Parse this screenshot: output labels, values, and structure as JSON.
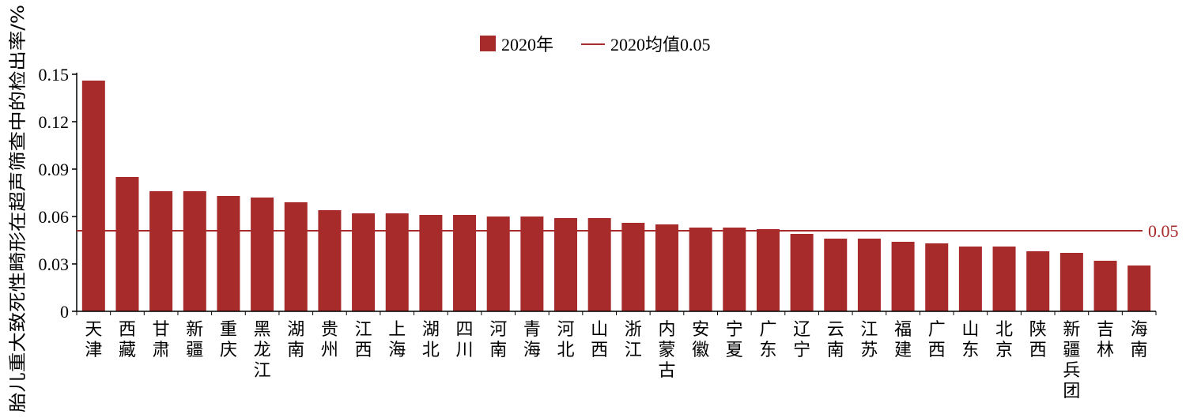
{
  "chart_data": {
    "type": "bar",
    "ylabel": "胎儿重大致死性畸形在超声筛查中的检出率/%",
    "ylim": [
      0,
      0.15
    ],
    "yticks": [
      "0",
      "0.03",
      "0.06",
      "0.09",
      "0.12",
      "0.15"
    ],
    "legend": {
      "placement": "top-center",
      "bar_label": "2020年",
      "line_label": "2020均值0.05"
    },
    "bar_color": "#a72b2a",
    "mean_line": {
      "value": 0.051,
      "label": "0.05",
      "color": "#a72b2a"
    },
    "categories": [
      "天津",
      "西藏",
      "甘肃",
      "新疆",
      "重庆",
      "黑龙江",
      "湖南",
      "贵州",
      "江西",
      "上海",
      "湖北",
      "四川",
      "河南",
      "青海",
      "河北",
      "山西",
      "浙江",
      "内蒙古",
      "安徽",
      "宁夏",
      "广东",
      "辽宁",
      "云南",
      "江苏",
      "福建",
      "广西",
      "山东",
      "北京",
      "陕西",
      "新疆兵团",
      "吉林",
      "海南"
    ],
    "series": [
      {
        "values": [
          0.146,
          0.085,
          0.076,
          0.076,
          0.073,
          0.072,
          0.069,
          0.064,
          0.062,
          0.062,
          0.061,
          0.061,
          0.06,
          0.06,
          0.059,
          0.059,
          0.056,
          0.055,
          0.053,
          0.053,
          0.052,
          0.049,
          0.046,
          0.046,
          0.044,
          0.043,
          0.041,
          0.041,
          0.038,
          0.037,
          0.032,
          0.029
        ]
      }
    ]
  }
}
